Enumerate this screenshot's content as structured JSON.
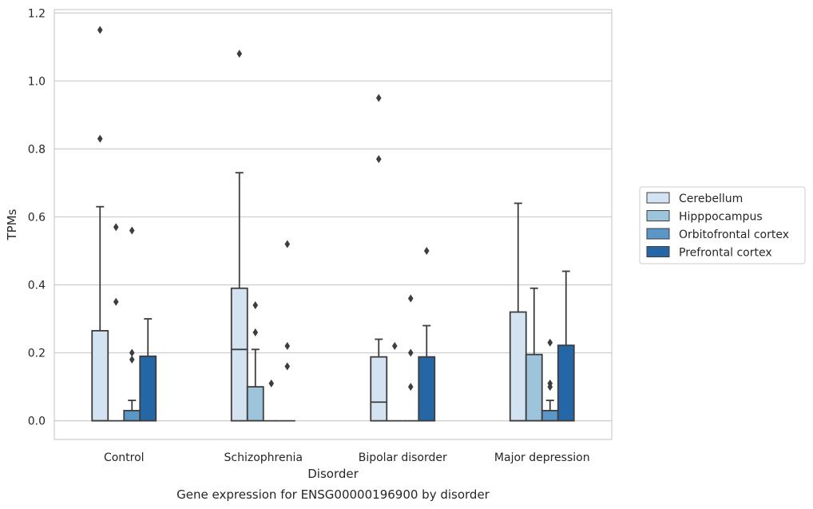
{
  "chart_data": {
    "type": "box",
    "caption": "Gene expression for ENSG00000196900 by disorder",
    "xlabel": "Disorder",
    "ylabel": "TPMs",
    "ylim": [
      -0.055,
      1.21
    ],
    "yticks": [
      0.0,
      0.2,
      0.4,
      0.6,
      0.8,
      1.0,
      1.2
    ],
    "ytick_labels": [
      "0.0",
      "0.2",
      "0.4",
      "0.6",
      "0.8",
      "1.0",
      "1.2"
    ],
    "grid": "horizontal",
    "legend_position": "right",
    "categories": [
      "Control",
      "Schizophrenia",
      "Bipolar disorder",
      "Major depression"
    ],
    "series": [
      {
        "name": "Cerebellum",
        "color": "#d3e3f1",
        "boxes": [
          {
            "q1": 0.0,
            "median": 0.0,
            "q3": 0.265,
            "whisker_low": 0.0,
            "whisker_high": 0.63,
            "outliers": [
              0.83,
              1.15
            ]
          },
          {
            "q1": 0.0,
            "median": 0.21,
            "q3": 0.39,
            "whisker_low": 0.0,
            "whisker_high": 0.73,
            "outliers": [
              1.08
            ]
          },
          {
            "q1": 0.0,
            "median": 0.055,
            "q3": 0.188,
            "whisker_low": 0.0,
            "whisker_high": 0.24,
            "outliers": [
              0.77,
              0.95
            ]
          },
          {
            "q1": 0.0,
            "median": 0.0,
            "q3": 0.32,
            "whisker_low": 0.0,
            "whisker_high": 0.64,
            "outliers": []
          }
        ]
      },
      {
        "name": "Hipppocampus",
        "color": "#9ec4dc",
        "boxes": [
          {
            "q1": 0.0,
            "median": 0.0,
            "q3": 0.0,
            "whisker_low": 0.0,
            "whisker_high": 0.0,
            "outliers": [
              0.35,
              0.57
            ]
          },
          {
            "q1": 0.0,
            "median": 0.0,
            "q3": 0.1,
            "whisker_low": 0.0,
            "whisker_high": 0.21,
            "outliers": [
              0.26,
              0.34
            ]
          },
          {
            "q1": 0.0,
            "median": 0.0,
            "q3": 0.0,
            "whisker_low": 0.0,
            "whisker_high": 0.0,
            "outliers": [
              0.22
            ]
          },
          {
            "q1": 0.0,
            "median": 0.0,
            "q3": 0.195,
            "whisker_low": 0.0,
            "whisker_high": 0.39,
            "outliers": []
          }
        ]
      },
      {
        "name": "Orbitofrontal cortex",
        "color": "#5a97c6",
        "boxes": [
          {
            "q1": 0.0,
            "median": 0.0,
            "q3": 0.03,
            "whisker_low": 0.0,
            "whisker_high": 0.06,
            "outliers": [
              0.18,
              0.2,
              0.56
            ]
          },
          {
            "q1": 0.0,
            "median": 0.0,
            "q3": 0.0,
            "whisker_low": 0.0,
            "whisker_high": 0.0,
            "outliers": [
              0.11
            ]
          },
          {
            "q1": 0.0,
            "median": 0.0,
            "q3": 0.0,
            "whisker_low": 0.0,
            "whisker_high": 0.0,
            "outliers": [
              0.1,
              0.2,
              0.36
            ]
          },
          {
            "q1": 0.0,
            "median": 0.0,
            "q3": 0.03,
            "whisker_low": 0.0,
            "whisker_high": 0.06,
            "outliers": [
              0.1,
              0.11,
              0.23
            ]
          }
        ]
      },
      {
        "name": "Prefrontal cortex",
        "color": "#2466a6",
        "boxes": [
          {
            "q1": 0.0,
            "median": 0.0,
            "q3": 0.19,
            "whisker_low": 0.0,
            "whisker_high": 0.3,
            "outliers": []
          },
          {
            "q1": 0.0,
            "median": 0.0,
            "q3": 0.0,
            "whisker_low": 0.0,
            "whisker_high": 0.0,
            "outliers": [
              0.16,
              0.22,
              0.52
            ]
          },
          {
            "q1": 0.0,
            "median": 0.0,
            "q3": 0.188,
            "whisker_low": 0.0,
            "whisker_high": 0.28,
            "outliers": [
              0.5
            ]
          },
          {
            "q1": 0.0,
            "median": 0.0,
            "q3": 0.222,
            "whisker_low": 0.0,
            "whisker_high": 0.44,
            "outliers": []
          }
        ]
      }
    ]
  }
}
